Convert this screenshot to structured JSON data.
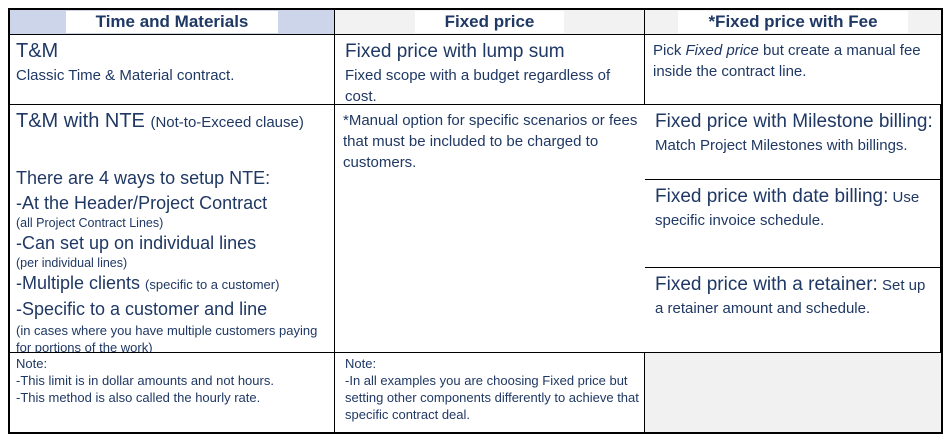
{
  "header": {
    "col1": "Time and Materials",
    "col2": "Fixed price",
    "col3": "*Fixed price with Fee"
  },
  "tm": {
    "title": "T&M",
    "desc": "Classic Time & Material contract."
  },
  "lump_sum": {
    "title": "Fixed price with lump sum",
    "desc": "Fixed scope with a budget regardless of cost."
  },
  "fee_pick": {
    "pre": "Pick ",
    "em": "Fixed price",
    "post": " but create a manual fee inside the contract line."
  },
  "nte": {
    "title": "T&M with NTE ",
    "title_paren": "(Not-to-Exceed clause)",
    "intro": "There are 4 ways to setup NTE:",
    "items": [
      {
        "main": "-At the Header/Project Contract",
        "paren": "(all Project Contract Lines)"
      },
      {
        "main": "-Can set up on individual lines",
        "paren": "(per individual lines)"
      },
      {
        "main": "-Multiple clients ",
        "paren": "(specific to a customer)"
      },
      {
        "main": "-Specific to a customer and line",
        "paren": "(in cases where you have multiple customers paying for portions of the work)"
      }
    ]
  },
  "milestone": {
    "title": "Fixed price with Milestone billing:",
    "desc": " Match Project Milestones with billings."
  },
  "date_billing": {
    "title": "Fixed price with date billing:",
    "desc": " Use specific invoice schedule."
  },
  "retainer": {
    "title": "Fixed price with a retainer:",
    "desc": " Set up a retainer amount and schedule."
  },
  "manual_fee": {
    "text": "*Manual option for specific scenarios or fees that must be included to be charged to customers."
  },
  "note_tm": {
    "label": "Note:",
    "lines": [
      "-This limit is in dollar amounts and not hours.",
      "-This method is also called the hourly rate."
    ]
  },
  "note_fixed": {
    "label": "Note:",
    "lines": [
      "-In all examples you are choosing Fixed price but setting other components differently to achieve that specific contract deal."
    ]
  },
  "colors": {
    "text": "#1f3864",
    "header_tm_bg": "#ccd5ea",
    "header_gray_bg": "#f2f2f2",
    "empty_cell_bg": "#f1f1f1",
    "border": "#000000"
  }
}
